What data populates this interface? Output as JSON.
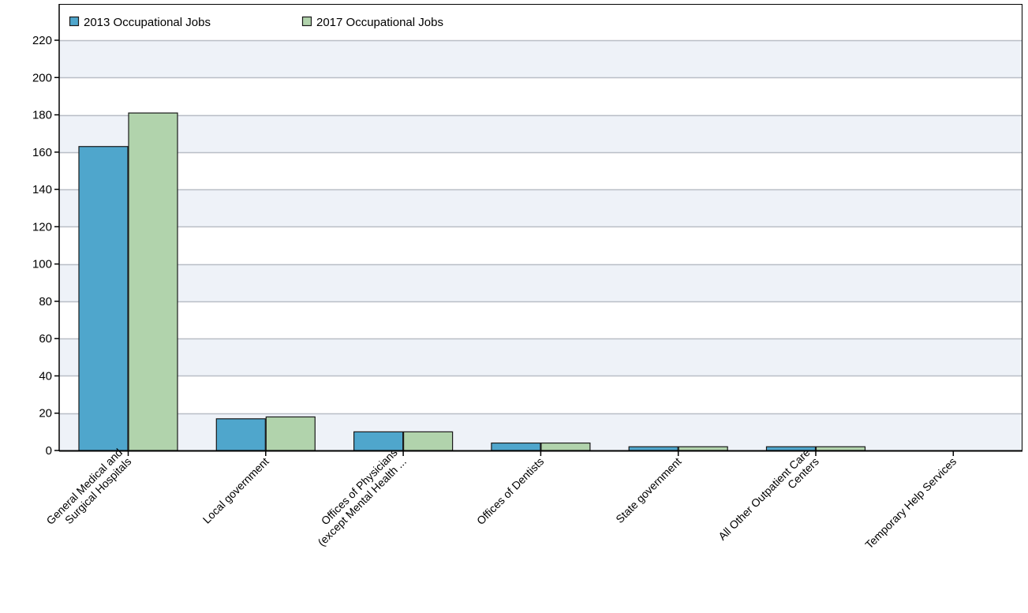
{
  "chart_data": {
    "type": "bar",
    "categories": [
      [
        "General Medical and",
        "Surgical Hospitals"
      ],
      [
        "Local government"
      ],
      [
        "Offices of Physicians",
        "(except Mental Health ..."
      ],
      [
        "Offices of Dentists"
      ],
      [
        "State government"
      ],
      [
        "All Other Outpatient Care",
        "Centers"
      ],
      [
        "Temporary Help Services"
      ]
    ],
    "series": [
      {
        "name": "2013 Occupational Jobs",
        "color": "#4fa6cc",
        "values": [
          163,
          17,
          10,
          4,
          2,
          2,
          0
        ]
      },
      {
        "name": "2017 Occupational Jobs",
        "color": "#b1d3ac",
        "values": [
          181,
          18,
          10,
          4,
          2,
          2,
          0
        ]
      }
    ],
    "ylim": [
      0,
      220
    ],
    "yticks": [
      0,
      20,
      40,
      60,
      80,
      100,
      120,
      140,
      160,
      180,
      200,
      220
    ],
    "grid": true,
    "band_color": "#eef2f8",
    "legend_position": "top-left"
  }
}
